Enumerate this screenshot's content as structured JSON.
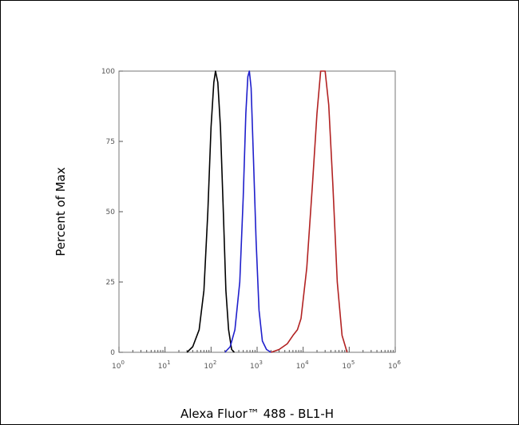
{
  "chart_data": {
    "type": "line",
    "title": "",
    "xlabel": "Alexa Fluor™ 488 - BL1-H",
    "ylabel": "Percent of Max",
    "x_scale": "log",
    "xlim": [
      1,
      1000000
    ],
    "ylim": [
      0,
      100
    ],
    "x_ticks": [
      {
        "base": "10",
        "exp": "0"
      },
      {
        "base": "10",
        "exp": "1"
      },
      {
        "base": "10",
        "exp": "2"
      },
      {
        "base": "10",
        "exp": "3"
      },
      {
        "base": "10",
        "exp": "4"
      },
      {
        "base": "10",
        "exp": "5"
      },
      {
        "base": "10",
        "exp": "6"
      }
    ],
    "y_ticks": [
      "0",
      "25",
      "50",
      "75",
      "100"
    ],
    "y_tick_values": [
      0,
      25,
      50,
      75,
      100
    ],
    "grid": false,
    "legend": "none",
    "series": [
      {
        "color": "#000000",
        "points": [
          [
            30,
            0
          ],
          [
            40,
            2
          ],
          [
            55,
            8
          ],
          [
            70,
            22
          ],
          [
            85,
            50
          ],
          [
            100,
            80
          ],
          [
            115,
            96
          ],
          [
            125,
            100
          ],
          [
            140,
            96
          ],
          [
            160,
            80
          ],
          [
            185,
            50
          ],
          [
            210,
            22
          ],
          [
            240,
            8
          ],
          [
            280,
            1
          ],
          [
            320,
            0
          ]
        ]
      },
      {
        "color": "#1f1fcc",
        "points": [
          [
            200,
            0
          ],
          [
            260,
            2
          ],
          [
            330,
            8
          ],
          [
            420,
            25
          ],
          [
            500,
            55
          ],
          [
            570,
            85
          ],
          [
            630,
            98
          ],
          [
            680,
            100
          ],
          [
            740,
            94
          ],
          [
            830,
            70
          ],
          [
            950,
            40
          ],
          [
            1100,
            15
          ],
          [
            1300,
            4
          ],
          [
            1600,
            1
          ],
          [
            2000,
            0
          ]
        ]
      },
      {
        "color": "#b22222",
        "points": [
          [
            2000,
            0
          ],
          [
            3000,
            1
          ],
          [
            4500,
            3
          ],
          [
            6000,
            6
          ],
          [
            7500,
            8
          ],
          [
            9000,
            12
          ],
          [
            12000,
            30
          ],
          [
            16000,
            60
          ],
          [
            20000,
            85
          ],
          [
            24000,
            100
          ],
          [
            30000,
            100
          ],
          [
            36000,
            88
          ],
          [
            44000,
            60
          ],
          [
            55000,
            25
          ],
          [
            70000,
            6
          ],
          [
            90000,
            0
          ]
        ]
      }
    ]
  }
}
